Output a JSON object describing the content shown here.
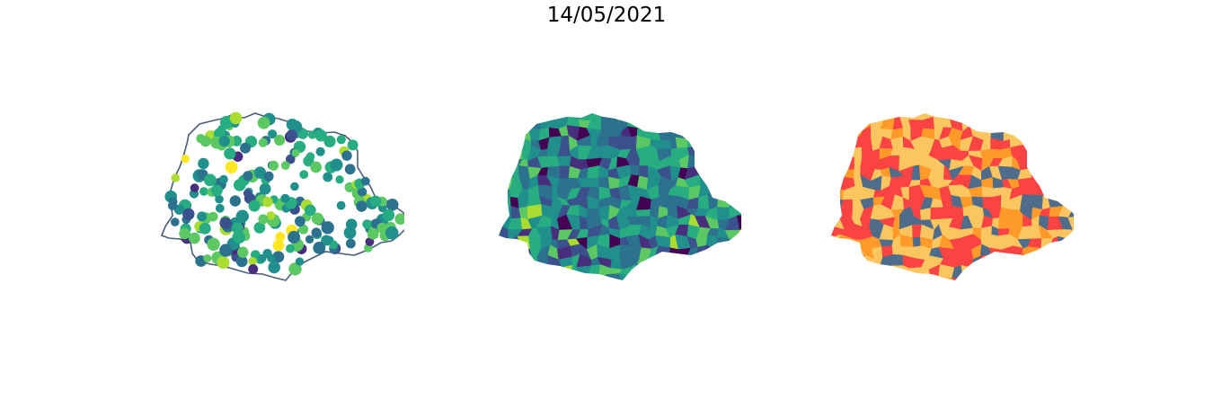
{
  "figure": {
    "title": "14/05/2021"
  },
  "colors": {
    "outline": "#4a5e7a",
    "viridis": [
      "#440154",
      "#472f7d",
      "#3b518b",
      "#2c718e",
      "#21908d",
      "#27ad81",
      "#5cc863",
      "#aadc32",
      "#fde725"
    ],
    "risk": [
      "#fa4343",
      "#fd9a2a",
      "#fbc55f",
      "#4f6c8a"
    ]
  },
  "panels": [
    {
      "id": "points",
      "style": "proportional-points-on-outline"
    },
    {
      "id": "choropleth-viridis",
      "style": "choropleth"
    },
    {
      "id": "choropleth-risk",
      "style": "choropleth-categorical"
    }
  ]
}
